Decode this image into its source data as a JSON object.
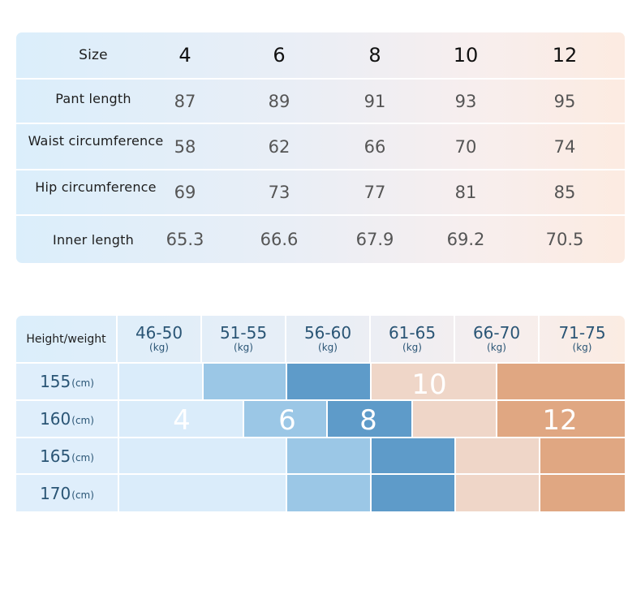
{
  "size_table": {
    "header": {
      "label": "Size",
      "sizes": [
        "4",
        "6",
        "8",
        "10",
        "12"
      ]
    },
    "rows": [
      {
        "label": "Pant length",
        "values": [
          "87",
          "89",
          "91",
          "93",
          "95"
        ]
      },
      {
        "label": "Waist circumference",
        "values": [
          "58",
          "62",
          "66",
          "70",
          "74"
        ]
      },
      {
        "label": "Hip circumference",
        "values": [
          "69",
          "73",
          "77",
          "81",
          "85"
        ]
      },
      {
        "label": "Inner length",
        "values": [
          "65.3",
          "66.6",
          "67.9",
          "69.2",
          "70.5"
        ]
      }
    ]
  },
  "height_weight_table": {
    "corner_label": "Height/weight",
    "weight_unit": "(kg)",
    "height_unit": "(cm)",
    "weight_ranges": [
      "46-50",
      "51-55",
      "56-60",
      "61-65",
      "66-70",
      "71-75"
    ],
    "heights": [
      "155",
      "160",
      "165",
      "170"
    ],
    "size_labels": {
      "s4": "4",
      "s6": "6",
      "s8": "8",
      "s10": "10",
      "s12": "12"
    },
    "colors": {
      "size_4": "#daecfa",
      "size_6": "#9bc7e6",
      "size_8": "#5e9bc9",
      "size_10": "#efd6c8",
      "size_12": "#e0a782"
    }
  }
}
